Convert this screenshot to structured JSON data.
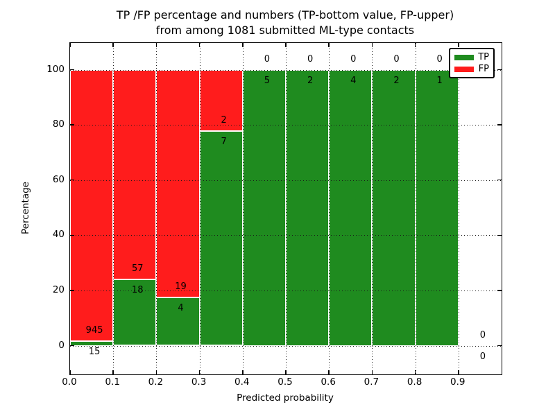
{
  "title": {
    "line1": "TP /FP percentage and numbers (TP-bottom value, FP-upper)",
    "line2": "from among 1081 submitted ML-type contacts"
  },
  "axes": {
    "x_label": "Predicted probability",
    "y_label": "Percentage",
    "x_tick_labels": [
      "0.0",
      "0.1",
      "0.2",
      "0.3",
      "0.4",
      "0.5",
      "0.6",
      "0.7",
      "0.8",
      "0.9"
    ],
    "y_tick_labels": [
      "0",
      "20",
      "40",
      "60",
      "80",
      "100"
    ]
  },
  "legend": {
    "items": [
      {
        "label": "TP",
        "color": "#1f8b1f"
      },
      {
        "label": "FP",
        "color": "#ff1c1c"
      }
    ]
  },
  "colors": {
    "tp_green": "#1f8b1f",
    "fp_red": "#ff1c1c",
    "background": "#ffffff",
    "text": "#000000"
  },
  "chart_data": {
    "type": "bar",
    "stacked": true,
    "normalized_to_percent": true,
    "title": "TP /FP percentage and numbers (TP-bottom value, FP-upper) from among 1081 submitted ML-type contacts",
    "xlabel": "Predicted probability",
    "ylabel": "Percentage",
    "xlim": [
      0.0,
      1.0
    ],
    "ylim": [
      -10.5,
      110
    ],
    "grid": "dotted, both axes, on top of bars",
    "legend_position": "upper right",
    "total_contacts": 1081,
    "bin_edges": [
      0.0,
      0.1,
      0.2,
      0.3,
      0.4,
      0.5,
      0.6,
      0.7,
      0.8,
      0.9,
      1.0
    ],
    "x_ticks": [
      0.0,
      0.1,
      0.2,
      0.3,
      0.4,
      0.5,
      0.6,
      0.7,
      0.8,
      0.9
    ],
    "y_ticks": [
      0,
      20,
      40,
      60,
      80,
      100
    ],
    "series": [
      {
        "name": "TP",
        "role": "bottom",
        "color": "#1f8b1f",
        "counts": [
          15,
          18,
          4,
          7,
          5,
          2,
          4,
          2,
          1,
          0
        ]
      },
      {
        "name": "FP",
        "role": "upper",
        "color": "#ff1c1c",
        "counts": [
          945,
          57,
          19,
          2,
          0,
          0,
          0,
          0,
          0,
          0
        ]
      }
    ],
    "tp_percent_per_bin": [
      1.56,
      24.0,
      17.39,
      77.78,
      100.0,
      100.0,
      100.0,
      100.0,
      100.0,
      0.0
    ],
    "fp_percent_per_bin": [
      98.44,
      76.0,
      82.61,
      22.22,
      0.0,
      0.0,
      0.0,
      0.0,
      0.0,
      0.0
    ]
  }
}
